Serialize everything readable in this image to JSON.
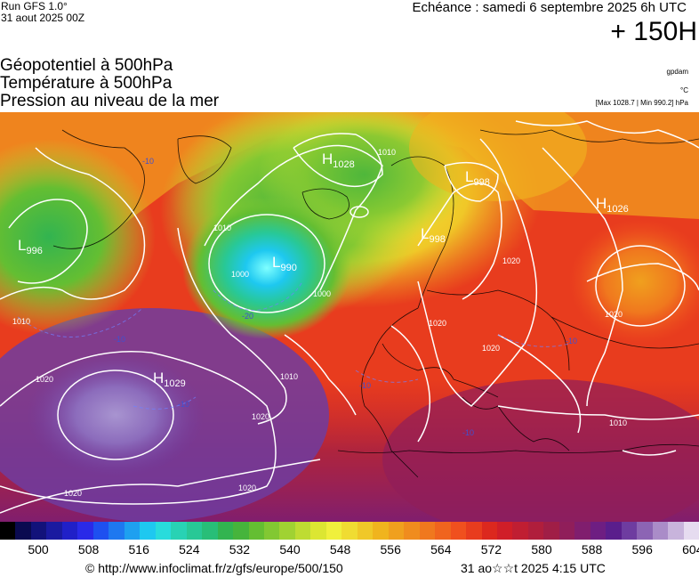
{
  "header": {
    "run_model": "Run GFS 1.0°",
    "run_date": "31 aout 2025 00Z",
    "echeance": "Echéance : samedi 6 septembre 2025 6h UTC",
    "lead": "+ 150H"
  },
  "titles": [
    "Géopotentiel à 500hPa",
    "Température à 500hPa",
    "Pression au niveau de la mer"
  ],
  "units": {
    "geopotential": "gpdam",
    "temperature": "°C",
    "pressure_range": "[Max 1028.7 | Min 990.2] hPa"
  },
  "pressure_centers": [
    {
      "type": "H",
      "value": "1028"
    },
    {
      "type": "L",
      "value": "998"
    },
    {
      "type": "L",
      "value": "998"
    },
    {
      "type": "H",
      "value": "1026"
    },
    {
      "type": "L",
      "value": "996"
    },
    {
      "type": "L",
      "value": "990"
    },
    {
      "type": "H",
      "value": "1029"
    }
  ],
  "isobar_labels": [
    "1010",
    "1020",
    "1000",
    "1010",
    "1000",
    "1020",
    "1010",
    "1020",
    "1020",
    "1020",
    "1010",
    "1020",
    "1010",
    "1020",
    "1020"
  ],
  "temperature_labels": [
    "-10",
    "-10",
    "-20",
    "-10",
    "-10",
    "-10",
    "-10"
  ],
  "colorbar": {
    "ticks": [
      "500",
      "508",
      "516",
      "524",
      "532",
      "540",
      "548",
      "556",
      "564",
      "572",
      "580",
      "588",
      "596",
      "604"
    ],
    "colors": [
      "#000000",
      "#0a0a50",
      "#12127a",
      "#1a1aa0",
      "#2020c8",
      "#2a2ae8",
      "#1e50f0",
      "#1e78f0",
      "#1ea0f0",
      "#1ec8f0",
      "#28dcdc",
      "#28d2b4",
      "#28c896",
      "#28be78",
      "#32b450",
      "#46b43c",
      "#64be32",
      "#82c832",
      "#a0d232",
      "#bedc32",
      "#dce632",
      "#f0f03c",
      "#f0dc32",
      "#f0c828",
      "#f0b41e",
      "#f0a01e",
      "#f08c1e",
      "#f0781e",
      "#f0641e",
      "#f0501e",
      "#e83c1e",
      "#dc281e",
      "#d01e28",
      "#c01e32",
      "#b01e3c",
      "#a01e46",
      "#901e5a",
      "#801e6e",
      "#6e1e82",
      "#5a1e8c",
      "#6e3ca0",
      "#8c64b4",
      "#aa8cc8",
      "#c8b4dc",
      "#e6dcf0"
    ]
  },
  "footer": {
    "url": "© http://www.infoclimat.fr/z/gfs/europe/500/150",
    "timestamp": "31 ao☆☆t 2025  4:15 UTC"
  }
}
